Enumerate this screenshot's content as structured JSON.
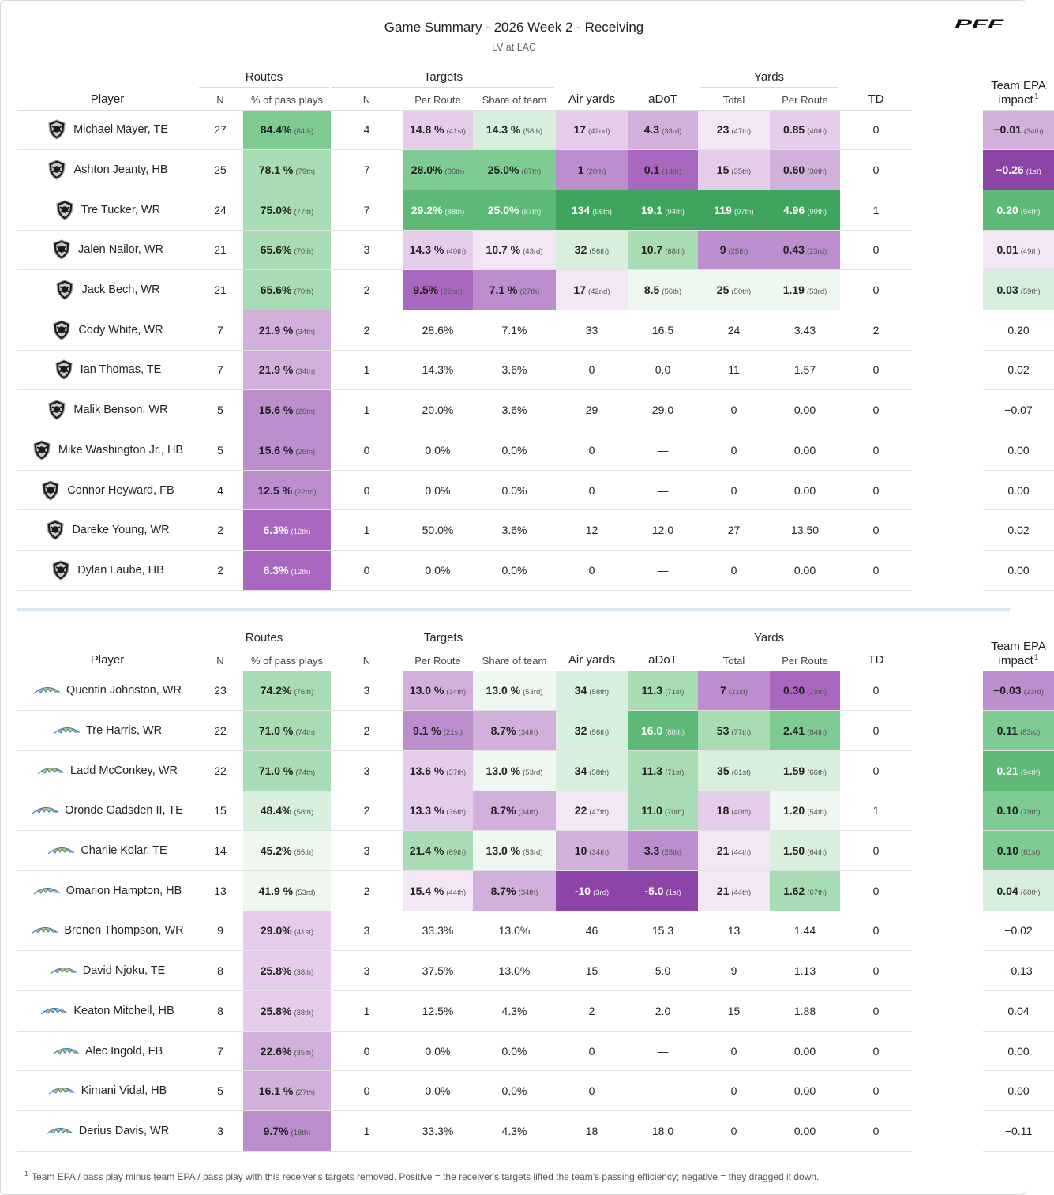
{
  "header": {
    "title": "Game Summary - 2026 Week 2 - Receiving",
    "subtitle": "LV at LAC",
    "logo_text": "PFF"
  },
  "columns": {
    "player": "Player",
    "routes_group": "Routes",
    "targets_group": "Targets",
    "yards_group": "Yards",
    "routes_n": "N",
    "routes_pct": "% of pass plays",
    "targets_n": "N",
    "per_route": "Per Route",
    "share_team": "Share of team",
    "air_yards": "Air yards",
    "adot": "aDoT",
    "yards_total": "Total",
    "yards_per_route": "Per Route",
    "td": "TD",
    "epa": "Team EPA impact",
    "epa_fn": "1"
  },
  "colors": {
    "g1": "#eef8f0",
    "g2": "#d7efdc",
    "g3": "#a7dcb4",
    "g4": "#7fcb94",
    "g5": "#5cba76",
    "g6": "#3fa55d",
    "p1": "#f3e7f5",
    "p2": "#e4cde8",
    "p3": "#d2b0dc",
    "p4": "#bd8ecd",
    "p5": "#a868c0",
    "p6": "#8c45a6"
  },
  "tables": [
    {
      "team": "LV",
      "logo_icon": "raiders-shield-icon",
      "rows": [
        {
          "player": "Michael Mayer, TE",
          "routes_n": "27",
          "routes_pct": {
            "v": "84.4%",
            "r": "(84th)",
            "c": "g4"
          },
          "targets_n": "4",
          "per_route": {
            "v": "14.8 %",
            "r": "(41st)",
            "c": "p2"
          },
          "share": {
            "v": "14.3 %",
            "r": "(58th)",
            "c": "g2"
          },
          "air_yards": {
            "v": "17",
            "r": "(42nd)",
            "c": "p2"
          },
          "adot": {
            "v": "4.3",
            "r": "(33rd)",
            "c": "p3"
          },
          "yds_total": {
            "v": "23",
            "r": "(47th)",
            "c": "p1"
          },
          "yds_pr": {
            "v": "0.85",
            "r": "(40th)",
            "c": "p2"
          },
          "td": "0",
          "epa": {
            "v": "−0.01",
            "r": "(34th)",
            "c": "p3"
          }
        },
        {
          "player": "Ashton Jeanty, HB",
          "routes_n": "25",
          "routes_pct": {
            "v": "78.1 %",
            "r": "(79th)",
            "c": "g3"
          },
          "targets_n": "7",
          "per_route": {
            "v": "28.0%",
            "r": "(86th)",
            "c": "g4"
          },
          "share": {
            "v": "25.0%",
            "r": "(87th)",
            "c": "g4"
          },
          "air_yards": {
            "v": "1",
            "r": "(20th)",
            "c": "p4"
          },
          "adot": {
            "v": "0.1",
            "r": "(14th)",
            "c": "p5"
          },
          "yds_total": {
            "v": "15",
            "r": "(35th)",
            "c": "p2"
          },
          "yds_pr": {
            "v": "0.60",
            "r": "(30th)",
            "c": "p3"
          },
          "td": "0",
          "epa": {
            "v": "−0.26",
            "r": "(1st)",
            "c": "p6",
            "dk": true
          }
        },
        {
          "player": "Tre Tucker, WR",
          "routes_n": "24",
          "routes_pct": {
            "v": "75.0%",
            "r": "(77th)",
            "c": "g3"
          },
          "targets_n": "7",
          "per_route": {
            "v": "29.2%",
            "r": "(88th)",
            "c": "g5",
            "dk": true
          },
          "share": {
            "v": "25.0%",
            "r": "(87th)",
            "c": "g5",
            "dk": true
          },
          "air_yards": {
            "v": "134",
            "r": "(96th)",
            "c": "g6",
            "dk": true
          },
          "adot": {
            "v": "19.1",
            "r": "(94th)",
            "c": "g6",
            "dk": true
          },
          "yds_total": {
            "v": "119",
            "r": "(97th)",
            "c": "g6",
            "dk": true
          },
          "yds_pr": {
            "v": "4.96",
            "r": "(99th)",
            "c": "g6",
            "dk": true
          },
          "td": "1",
          "epa": {
            "v": "0.20",
            "r": "(94th)",
            "c": "g5",
            "dk": true
          }
        },
        {
          "player": "Jalen Nailor, WR",
          "routes_n": "21",
          "routes_pct": {
            "v": "65.6%",
            "r": "(70th)",
            "c": "g3"
          },
          "targets_n": "3",
          "per_route": {
            "v": "14.3 %",
            "r": "(40th)",
            "c": "p2"
          },
          "share": {
            "v": "10.7 %",
            "r": "(43rd)",
            "c": "p1"
          },
          "air_yards": {
            "v": "32",
            "r": "(56th)",
            "c": "g2"
          },
          "adot": {
            "v": "10.7",
            "r": "(68th)",
            "c": "g3"
          },
          "yds_total": {
            "v": "9",
            "r": "(25th)",
            "c": "p4"
          },
          "yds_pr": {
            "v": "0.43",
            "r": "(23rd)",
            "c": "p4"
          },
          "td": "0",
          "epa": {
            "v": "0.01",
            "r": "(49th)",
            "c": "p1"
          }
        },
        {
          "player": "Jack Bech, WR",
          "routes_n": "21",
          "routes_pct": {
            "v": "65.6%",
            "r": "(70th)",
            "c": "g3"
          },
          "targets_n": "2",
          "per_route": {
            "v": "9.5%",
            "r": "(22nd)",
            "c": "p5"
          },
          "share": {
            "v": "7.1 %",
            "r": "(27th)",
            "c": "p4"
          },
          "air_yards": {
            "v": "17",
            "r": "(42nd)",
            "c": "p1"
          },
          "adot": {
            "v": "8.5",
            "r": "(56th)",
            "c": "g1"
          },
          "yds_total": {
            "v": "25",
            "r": "(50th)",
            "c": "g1"
          },
          "yds_pr": {
            "v": "1.19",
            "r": "(53rd)",
            "c": "g1"
          },
          "td": "0",
          "epa": {
            "v": "0.03",
            "r": "(59th)",
            "c": "g2"
          }
        },
        {
          "player": "Cody White, WR",
          "routes_n": "7",
          "routes_pct": {
            "v": "21.9 %",
            "r": "(34th)",
            "c": "p3"
          },
          "targets_n": "2",
          "per_route": "28.6%",
          "share": "7.1%",
          "air_yards": "33",
          "adot": "16.5",
          "yds_total": "24",
          "yds_pr": "3.43",
          "td": "2",
          "epa": "0.20"
        },
        {
          "player": "Ian Thomas, TE",
          "routes_n": "7",
          "routes_pct": {
            "v": "21.9 %",
            "r": "(34th)",
            "c": "p3"
          },
          "targets_n": "1",
          "per_route": "14.3%",
          "share": "3.6%",
          "air_yards": "0",
          "adot": "0.0",
          "yds_total": "11",
          "yds_pr": "1.57",
          "td": "0",
          "epa": "0.02"
        },
        {
          "player": "Malik Benson, WR",
          "routes_n": "5",
          "routes_pct": {
            "v": "15.6 %",
            "r": "(26th)",
            "c": "p4"
          },
          "targets_n": "1",
          "per_route": "20.0%",
          "share": "3.6%",
          "air_yards": "29",
          "adot": "29.0",
          "yds_total": "0",
          "yds_pr": "0.00",
          "td": "0",
          "epa": "−0.07"
        },
        {
          "player": "Mike Washington Jr., HB",
          "routes_n": "5",
          "routes_pct": {
            "v": "15.6 %",
            "r": "(26th)",
            "c": "p4"
          },
          "targets_n": "0",
          "per_route": "0.0%",
          "share": "0.0%",
          "air_yards": "0",
          "adot": "—",
          "yds_total": "0",
          "yds_pr": "0.00",
          "td": "0",
          "epa": "0.00"
        },
        {
          "player": "Connor Heyward, FB",
          "routes_n": "4",
          "routes_pct": {
            "v": "12.5 %",
            "r": "(22nd)",
            "c": "p4"
          },
          "targets_n": "0",
          "per_route": "0.0%",
          "share": "0.0%",
          "air_yards": "0",
          "adot": "—",
          "yds_total": "0",
          "yds_pr": "0.00",
          "td": "0",
          "epa": "0.00"
        },
        {
          "player": "Dareke Young, WR",
          "routes_n": "2",
          "routes_pct": {
            "v": "6.3%",
            "r": "(12th)",
            "c": "p5",
            "dk": true
          },
          "targets_n": "1",
          "per_route": "50.0%",
          "share": "3.6%",
          "air_yards": "12",
          "adot": "12.0",
          "yds_total": "27",
          "yds_pr": "13.50",
          "td": "0",
          "epa": "0.02"
        },
        {
          "player": "Dylan Laube, HB",
          "routes_n": "2",
          "routes_pct": {
            "v": "6.3%",
            "r": "(12th)",
            "c": "p5",
            "dk": true
          },
          "targets_n": "0",
          "per_route": "0.0%",
          "share": "0.0%",
          "air_yards": "0",
          "adot": "—",
          "yds_total": "0",
          "yds_pr": "0.00",
          "td": "0",
          "epa": "0.00"
        }
      ]
    },
    {
      "team": "LAC",
      "logo_icon": "chargers-bolt-icon",
      "rows": [
        {
          "player": "Quentin Johnston, WR",
          "routes_n": "23",
          "routes_pct": {
            "v": "74.2%",
            "r": "(76th)",
            "c": "g3"
          },
          "targets_n": "3",
          "per_route": {
            "v": "13.0 %",
            "r": "(34th)",
            "c": "p3"
          },
          "share": {
            "v": "13.0 %",
            "r": "(53rd)",
            "c": "g1"
          },
          "air_yards": {
            "v": "34",
            "r": "(58th)",
            "c": "g2"
          },
          "adot": {
            "v": "11.3",
            "r": "(71st)",
            "c": "g3"
          },
          "yds_total": {
            "v": "7",
            "r": "(21st)",
            "c": "p4"
          },
          "yds_pr": {
            "v": "0.30",
            "r": "(19th)",
            "c": "p5"
          },
          "td": "0",
          "epa": {
            "v": "−0.03",
            "r": "(23rd)",
            "c": "p4"
          }
        },
        {
          "player": "Tre Harris, WR",
          "routes_n": "22",
          "routes_pct": {
            "v": "71.0 %",
            "r": "(74th)",
            "c": "g3"
          },
          "targets_n": "2",
          "per_route": {
            "v": "9.1 %",
            "r": "(21st)",
            "c": "p4"
          },
          "share": {
            "v": "8.7%",
            "r": "(34th)",
            "c": "p3"
          },
          "air_yards": {
            "v": "32",
            "r": "(56th)",
            "c": "g2"
          },
          "adot": {
            "v": "16.0",
            "r": "(88th)",
            "c": "g5",
            "dk": true
          },
          "yds_total": {
            "v": "53",
            "r": "(77th)",
            "c": "g3"
          },
          "yds_pr": {
            "v": "2.41",
            "r": "(84th)",
            "c": "g4"
          },
          "td": "0",
          "epa": {
            "v": "0.11",
            "r": "(83rd)",
            "c": "g4"
          }
        },
        {
          "player": "Ladd McConkey, WR",
          "routes_n": "22",
          "routes_pct": {
            "v": "71.0 %",
            "r": "(74th)",
            "c": "g3"
          },
          "targets_n": "3",
          "per_route": {
            "v": "13.6 %",
            "r": "(37th)",
            "c": "p2"
          },
          "share": {
            "v": "13.0 %",
            "r": "(53rd)",
            "c": "g1"
          },
          "air_yards": {
            "v": "34",
            "r": "(58th)",
            "c": "g2"
          },
          "adot": {
            "v": "11.3",
            "r": "(71st)",
            "c": "g3"
          },
          "yds_total": {
            "v": "35",
            "r": "(61st)",
            "c": "g2"
          },
          "yds_pr": {
            "v": "1.59",
            "r": "(66th)",
            "c": "g2"
          },
          "td": "0",
          "epa": {
            "v": "0.21",
            "r": "(94th)",
            "c": "g5",
            "dk": true
          }
        },
        {
          "player": "Oronde Gadsden II, TE",
          "routes_n": "15",
          "routes_pct": {
            "v": "48.4%",
            "r": "(58th)",
            "c": "g2"
          },
          "targets_n": "2",
          "per_route": {
            "v": "13.3 %",
            "r": "(36th)",
            "c": "p2"
          },
          "share": {
            "v": "8.7%",
            "r": "(34th)",
            "c": "p3"
          },
          "air_yards": {
            "v": "22",
            "r": "(47th)",
            "c": "p1"
          },
          "adot": {
            "v": "11.0",
            "r": "(70th)",
            "c": "g3"
          },
          "yds_total": {
            "v": "18",
            "r": "(40th)",
            "c": "p2"
          },
          "yds_pr": {
            "v": "1.20",
            "r": "(54th)",
            "c": "g1"
          },
          "td": "1",
          "epa": {
            "v": "0.10",
            "r": "(79th)",
            "c": "g4"
          }
        },
        {
          "player": "Charlie Kolar, TE",
          "routes_n": "14",
          "routes_pct": {
            "v": "45.2%",
            "r": "(55th)",
            "c": "g1"
          },
          "targets_n": "3",
          "per_route": {
            "v": "21.4 %",
            "r": "(69th)",
            "c": "g3"
          },
          "share": {
            "v": "13.0 %",
            "r": "(53rd)",
            "c": "g1"
          },
          "air_yards": {
            "v": "10",
            "r": "(34th)",
            "c": "p3"
          },
          "adot": {
            "v": "3.3",
            "r": "(28th)",
            "c": "p4"
          },
          "yds_total": {
            "v": "21",
            "r": "(44th)",
            "c": "p1"
          },
          "yds_pr": {
            "v": "1.50",
            "r": "(64th)",
            "c": "g2"
          },
          "td": "0",
          "epa": {
            "v": "0.10",
            "r": "(81st)",
            "c": "g4"
          }
        },
        {
          "player": "Omarion Hampton, HB",
          "routes_n": "13",
          "routes_pct": {
            "v": "41.9 %",
            "r": "(53rd)",
            "c": "g1"
          },
          "targets_n": "2",
          "per_route": {
            "v": "15.4 %",
            "r": "(44th)",
            "c": "p1"
          },
          "share": {
            "v": "8.7%",
            "r": "(34th)",
            "c": "p3"
          },
          "air_yards": {
            "v": "-10",
            "r": "(3rd)",
            "c": "p6",
            "dk": true
          },
          "adot": {
            "v": "-5.0",
            "r": "(1st)",
            "c": "p6",
            "dk": true
          },
          "yds_total": {
            "v": "21",
            "r": "(44th)",
            "c": "p1"
          },
          "yds_pr": {
            "v": "1.62",
            "r": "(67th)",
            "c": "g3"
          },
          "td": "0",
          "epa": {
            "v": "0.04",
            "r": "(60th)",
            "c": "g2"
          }
        },
        {
          "player": "Brenen Thompson, WR",
          "routes_n": "9",
          "routes_pct": {
            "v": "29.0%",
            "r": "(41st)",
            "c": "p2"
          },
          "targets_n": "3",
          "per_route": "33.3%",
          "share": "13.0%",
          "air_yards": "46",
          "adot": "15.3",
          "yds_total": "13",
          "yds_pr": "1.44",
          "td": "0",
          "epa": "−0.02"
        },
        {
          "player": "David Njoku, TE",
          "routes_n": "8",
          "routes_pct": {
            "v": "25.8%",
            "r": "(38th)",
            "c": "p2"
          },
          "targets_n": "3",
          "per_route": "37.5%",
          "share": "13.0%",
          "air_yards": "15",
          "adot": "5.0",
          "yds_total": "9",
          "yds_pr": "1.13",
          "td": "0",
          "epa": "−0.13"
        },
        {
          "player": "Keaton Mitchell, HB",
          "routes_n": "8",
          "routes_pct": {
            "v": "25.8%",
            "r": "(38th)",
            "c": "p2"
          },
          "targets_n": "1",
          "per_route": "12.5%",
          "share": "4.3%",
          "air_yards": "2",
          "adot": "2.0",
          "yds_total": "15",
          "yds_pr": "1.88",
          "td": "0",
          "epa": "0.04"
        },
        {
          "player": "Alec Ingold, FB",
          "routes_n": "7",
          "routes_pct": {
            "v": "22.6%",
            "r": "(35th)",
            "c": "p3"
          },
          "targets_n": "0",
          "per_route": "0.0%",
          "share": "0.0%",
          "air_yards": "0",
          "adot": "—",
          "yds_total": "0",
          "yds_pr": "0.00",
          "td": "0",
          "epa": "0.00"
        },
        {
          "player": "Kimani Vidal, HB",
          "routes_n": "5",
          "routes_pct": {
            "v": "16.1 %",
            "r": "(27th)",
            "c": "p3"
          },
          "targets_n": "0",
          "per_route": "0.0%",
          "share": "0.0%",
          "air_yards": "0",
          "adot": "—",
          "yds_total": "0",
          "yds_pr": "0.00",
          "td": "0",
          "epa": "0.00"
        },
        {
          "player": "Derius Davis, WR",
          "routes_n": "3",
          "routes_pct": {
            "v": "9.7%",
            "r": "(18th)",
            "c": "p4"
          },
          "targets_n": "1",
          "per_route": "33.3%",
          "share": "4.3%",
          "air_yards": "18",
          "adot": "18.0",
          "yds_total": "0",
          "yds_pr": "0.00",
          "td": "0",
          "epa": "−0.11"
        }
      ]
    }
  ],
  "footnote": {
    "mark": "1",
    "text": "Team EPA / pass play minus team EPA / pass play with this receiver's targets removed. Positive = the receiver's targets lifted the team's passing efficiency; negative = they dragged it down."
  }
}
